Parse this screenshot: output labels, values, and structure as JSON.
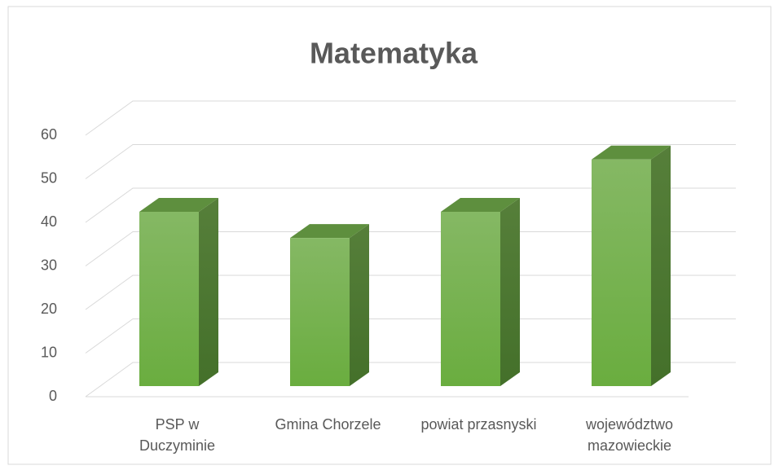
{
  "chart_data": {
    "type": "bar3d",
    "title": "Matematyka",
    "categories": [
      "PSP w Duczyminie",
      "Gmina Chorzele",
      "powiat przasnyski",
      "województwo mazowieckie"
    ],
    "values": [
      40,
      34,
      40,
      52
    ],
    "color": "#70ad47",
    "ylim": [
      0,
      60
    ],
    "yticks": [
      0,
      10,
      20,
      30,
      40,
      50,
      60
    ],
    "grid": true
  }
}
